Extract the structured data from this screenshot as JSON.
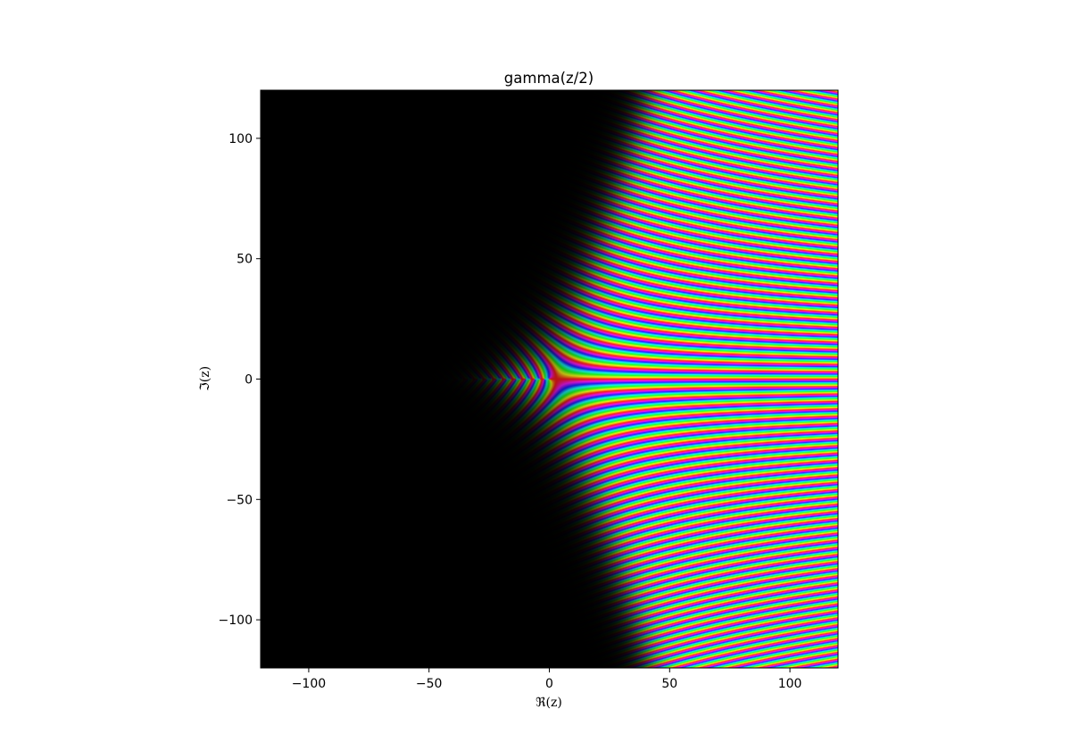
{
  "chart_data": {
    "type": "heatmap",
    "title": "gamma(z/2)",
    "xlabel": "ℜ(z)",
    "ylabel": "ℑ(z)",
    "xlim": [
      -120,
      120
    ],
    "ylim": [
      -120,
      120
    ],
    "xticks": [
      -100,
      -50,
      0,
      50,
      100
    ],
    "yticks": [
      -100,
      -50,
      0,
      50,
      100
    ],
    "xtick_labels": [
      "−100",
      "−50",
      "0",
      "50",
      "100"
    ],
    "ytick_labels": [
      "−100",
      "−50",
      "0",
      "50",
      "100"
    ],
    "function": "gamma(z/2)",
    "coloring": "domain coloring: hue = argument, brightness = modulus",
    "grid": false,
    "legend": "none"
  }
}
